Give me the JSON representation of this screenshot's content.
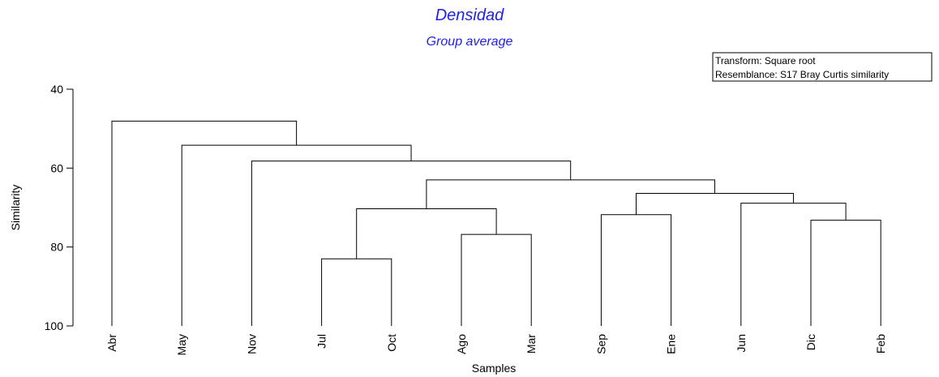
{
  "chart_data": {
    "type": "dendrogram",
    "title": "Densidad",
    "subtitle": "Group average",
    "xlabel": "Samples",
    "ylabel": "Similarity",
    "ylim": [
      40,
      100
    ],
    "yticks": [
      "40",
      "60",
      "80",
      "100"
    ],
    "leaves": [
      "Abr",
      "May",
      "Nov",
      "Jul",
      "Oct",
      "Ago",
      "Mar",
      "Sep",
      "Ene",
      "Jun",
      "Dic",
      "Feb"
    ],
    "merges": [
      {
        "left": "Jul",
        "right": "Oct",
        "similarity": 83
      },
      {
        "left": "Ago",
        "right": "Mar",
        "similarity": 76.8
      },
      {
        "left": "Jul-Oct",
        "right": "Ago-Mar",
        "similarity": 70.3
      },
      {
        "left": "Sep",
        "right": "Ene",
        "similarity": 71.8
      },
      {
        "left": "Dic",
        "right": "Feb",
        "similarity": 73.2
      },
      {
        "left": "Jun",
        "right": "Dic-Feb",
        "similarity": 68.9
      },
      {
        "left": "Sep-Ene",
        "right": "Jun-Dic-Feb",
        "similarity": 66.4
      },
      {
        "left": "Jul-Oct-Ago-Mar",
        "right": "Sep-Ene-Jun-Dic-Feb",
        "similarity": 63
      },
      {
        "left": "Nov",
        "right": "rest",
        "similarity": 58.2
      },
      {
        "left": "May",
        "right": "rest",
        "similarity": 54.2
      },
      {
        "left": "Abr",
        "right": "rest",
        "similarity": 48.1
      }
    ],
    "legend": {
      "transform_label": "Transform: Square root",
      "resemblance_label": "Resemblance: S17 Bray Curtis similarity"
    },
    "colors": {
      "title": "#1f1fe6",
      "lines": "#000000"
    },
    "grid": false
  }
}
